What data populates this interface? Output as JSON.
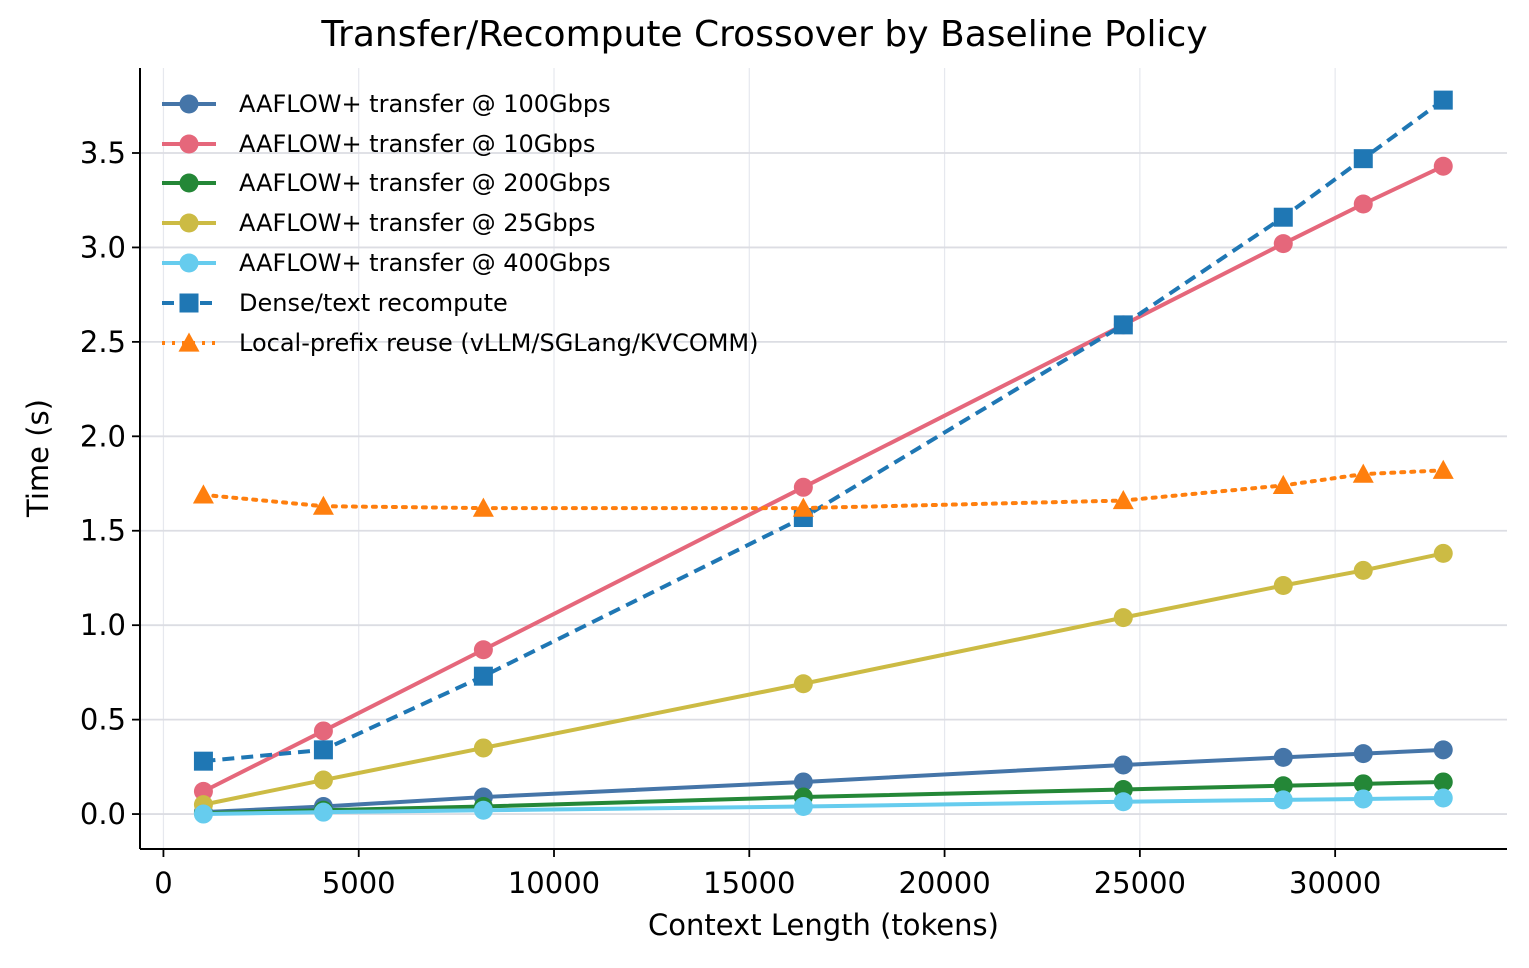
{
  "chart_data": {
    "type": "line",
    "title": "Transfer/Recompute Crossover by Baseline Policy",
    "xlabel": "Context Length (tokens)",
    "ylabel": "Time (s)",
    "xlim": [
      -600,
      34400
    ],
    "ylim": [
      -0.185,
      3.95
    ],
    "xticks": [
      0,
      5000,
      10000,
      15000,
      20000,
      25000,
      30000
    ],
    "xtick_labels": [
      "0",
      "5000",
      "10000",
      "15000",
      "20000",
      "25000",
      "30000"
    ],
    "yticks": [
      0.0,
      0.5,
      1.0,
      1.5,
      2.0,
      2.5,
      3.0,
      3.5
    ],
    "ytick_labels": [
      "0.0",
      "0.5",
      "1.0",
      "1.5",
      "2.0",
      "2.5",
      "3.0",
      "3.5"
    ],
    "grid": true,
    "legend_position": "top-left",
    "x": [
      1024,
      4096,
      8192,
      16384,
      24576,
      28672,
      30720,
      32768
    ],
    "series": [
      {
        "name": "AAFLOW+ transfer @ 100Gbps",
        "color": "#4575a8",
        "marker": "circle",
        "linestyle": "solid",
        "values": [
          0.01,
          0.04,
          0.09,
          0.17,
          0.26,
          0.3,
          0.32,
          0.34
        ]
      },
      {
        "name": "AAFLOW+ transfer @ 10Gbps",
        "color": "#e5677b",
        "marker": "circle",
        "linestyle": "solid",
        "values": [
          0.12,
          0.44,
          0.87,
          1.73,
          2.59,
          3.02,
          3.23,
          3.43
        ]
      },
      {
        "name": "AAFLOW+ transfer @ 200Gbps",
        "color": "#248737",
        "marker": "circle",
        "linestyle": "solid",
        "values": [
          0.005,
          0.02,
          0.04,
          0.09,
          0.13,
          0.15,
          0.16,
          0.17
        ]
      },
      {
        "name": "AAFLOW+ transfer @ 25Gbps",
        "color": "#ccbb44",
        "marker": "circle",
        "linestyle": "solid",
        "values": [
          0.05,
          0.18,
          0.35,
          0.69,
          1.04,
          1.21,
          1.29,
          1.38
        ]
      },
      {
        "name": "AAFLOW+ transfer @ 400Gbps",
        "color": "#66ccee",
        "marker": "circle",
        "linestyle": "solid",
        "values": [
          0.0,
          0.01,
          0.02,
          0.04,
          0.065,
          0.075,
          0.08,
          0.085
        ]
      },
      {
        "name": "Dense/text recompute",
        "color": "#1f77b4",
        "marker": "square",
        "linestyle": "dashed",
        "values": [
          0.28,
          0.34,
          0.73,
          1.57,
          2.59,
          3.16,
          3.47,
          3.78
        ]
      },
      {
        "name": "Local-prefix reuse (vLLM/SGLang/KVCOMM)",
        "color": "#ff7f0e",
        "marker": "triangle",
        "linestyle": "dotted",
        "values": [
          1.69,
          1.63,
          1.62,
          1.62,
          1.66,
          1.74,
          1.8,
          1.82
        ]
      }
    ]
  }
}
